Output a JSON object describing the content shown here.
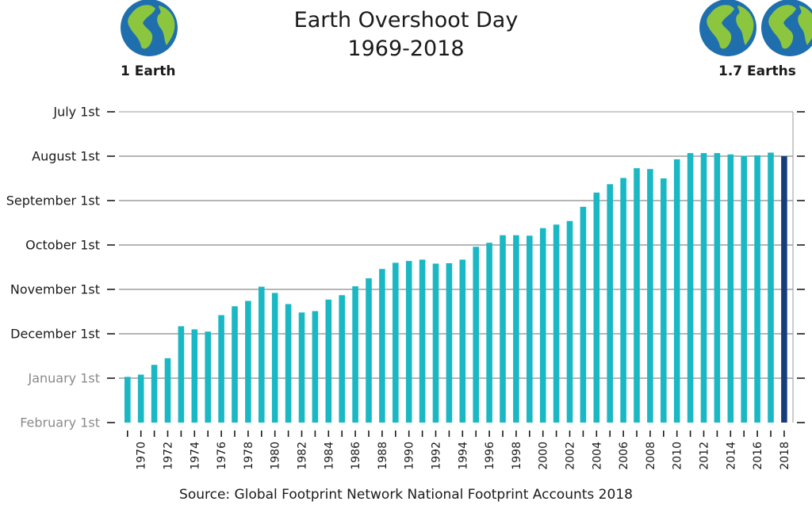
{
  "header": {
    "title_line1": "Earth Overshoot Day",
    "title_line2": "1969-2018",
    "left_label": "1 Earth",
    "right_label": "1.7 Earths"
  },
  "footer": {
    "source": "Source: Global Footprint Network National Footprint Accounts 2018"
  },
  "icons": {
    "left": "earth-globe-icon",
    "right": "earth-globe-pair-icon"
  },
  "colors": {
    "bar": "#1ab8c4",
    "bar_highlight": "#173e7a",
    "axis_label_dark": "#1a1a1a",
    "axis_label_light": "#8a8a8a",
    "gridline": "#6e6e6e",
    "ocean": "#1f6fae",
    "land": "#8cc63f"
  },
  "chart_data": {
    "type": "bar",
    "title": "Earth Overshoot Day",
    "subtitle": "1969-2018",
    "xlabel": "",
    "ylabel": "",
    "y_axis_inverted": true,
    "y_axis_unit": "months before end of year (February 1st of following year = 0)",
    "yticks": [
      {
        "label": "July 1st",
        "value": 7,
        "muted": false
      },
      {
        "label": "August 1st",
        "value": 6,
        "muted": false
      },
      {
        "label": "September 1st",
        "value": 5,
        "muted": false
      },
      {
        "label": "October 1st",
        "value": 4,
        "muted": false
      },
      {
        "label": "November 1st",
        "value": 3,
        "muted": false
      },
      {
        "label": "December 1st",
        "value": 2,
        "muted": false
      },
      {
        "label": "January 1st",
        "value": 1,
        "muted": true
      },
      {
        "label": "February 1st",
        "value": 0,
        "muted": true
      }
    ],
    "ylim": [
      0,
      7
    ],
    "grid": true,
    "xtick_labels": [
      "1970",
      "1972",
      "1974",
      "1976",
      "1978",
      "1980",
      "1982",
      "1984",
      "1986",
      "1988",
      "1990",
      "1992",
      "1994",
      "1996",
      "1998",
      "2000",
      "2002",
      "2004",
      "2006",
      "2008",
      "2010",
      "2012",
      "2014",
      "2016",
      "2018"
    ],
    "categories": [
      "1969",
      "1970",
      "1971",
      "1972",
      "1973",
      "1974",
      "1975",
      "1976",
      "1977",
      "1978",
      "1979",
      "1980",
      "1981",
      "1982",
      "1983",
      "1984",
      "1985",
      "1986",
      "1987",
      "1988",
      "1989",
      "1990",
      "1991",
      "1992",
      "1993",
      "1994",
      "1995",
      "1996",
      "1997",
      "1998",
      "1999",
      "2000",
      "2001",
      "2002",
      "2003",
      "2004",
      "2005",
      "2006",
      "2007",
      "2008",
      "2009",
      "2010",
      "2011",
      "2012",
      "2013",
      "2014",
      "2015",
      "2016",
      "2017",
      "2018"
    ],
    "values": [
      1.03,
      1.08,
      1.3,
      1.45,
      2.17,
      2.1,
      2.05,
      2.42,
      2.62,
      2.74,
      3.06,
      2.92,
      2.67,
      2.48,
      2.51,
      2.77,
      2.87,
      3.07,
      3.25,
      3.46,
      3.6,
      3.64,
      3.67,
      3.58,
      3.59,
      3.67,
      3.96,
      4.05,
      4.22,
      4.22,
      4.21,
      4.38,
      4.46,
      4.54,
      4.86,
      5.18,
      5.37,
      5.51,
      5.73,
      5.71,
      5.5,
      5.93,
      6.07,
      6.07,
      6.07,
      6.04,
      6.01,
      6.02,
      6.08,
      6.0
    ],
    "highlight_category": "2018"
  }
}
